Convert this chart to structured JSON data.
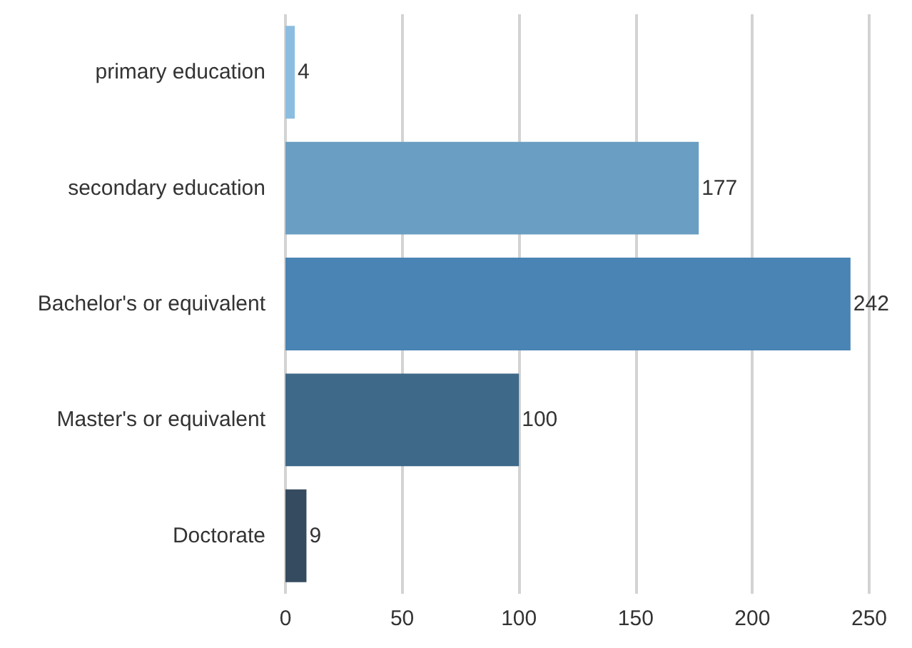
{
  "chart_data": {
    "type": "bar",
    "orientation": "horizontal",
    "categories": [
      "primary education",
      "secondary education",
      "Bachelor's or equivalent",
      "Master's or equivalent",
      "Doctorate"
    ],
    "values": [
      4,
      177,
      242,
      100,
      9
    ],
    "colors": [
      "#8bbde0",
      "#6a9ec2",
      "#4984b4",
      "#3f6989",
      "#354b5f"
    ],
    "xlim": [
      0,
      250
    ],
    "xticks": [
      0,
      50,
      100,
      150,
      200,
      250
    ],
    "grid": "x",
    "data_labels": true
  }
}
